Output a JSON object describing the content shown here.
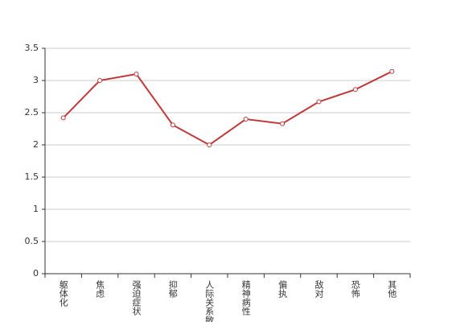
{
  "chart_data": {
    "type": "line",
    "categories": [
      "躯体化",
      "焦虑",
      "强迫症状",
      "抑郁",
      "人际关系敏感",
      "精神病性",
      "偏执",
      "敌对",
      "恐怖",
      "其他"
    ],
    "values": [
      2.42,
      3.0,
      3.1,
      2.31,
      2.0,
      2.4,
      2.33,
      2.67,
      2.86,
      3.14
    ],
    "color": "#c0393a",
    "ylim": [
      0,
      3.5
    ],
    "yticks": [
      0,
      0.5,
      1,
      1.5,
      2,
      2.5,
      3,
      3.5
    ],
    "grid": true
  }
}
